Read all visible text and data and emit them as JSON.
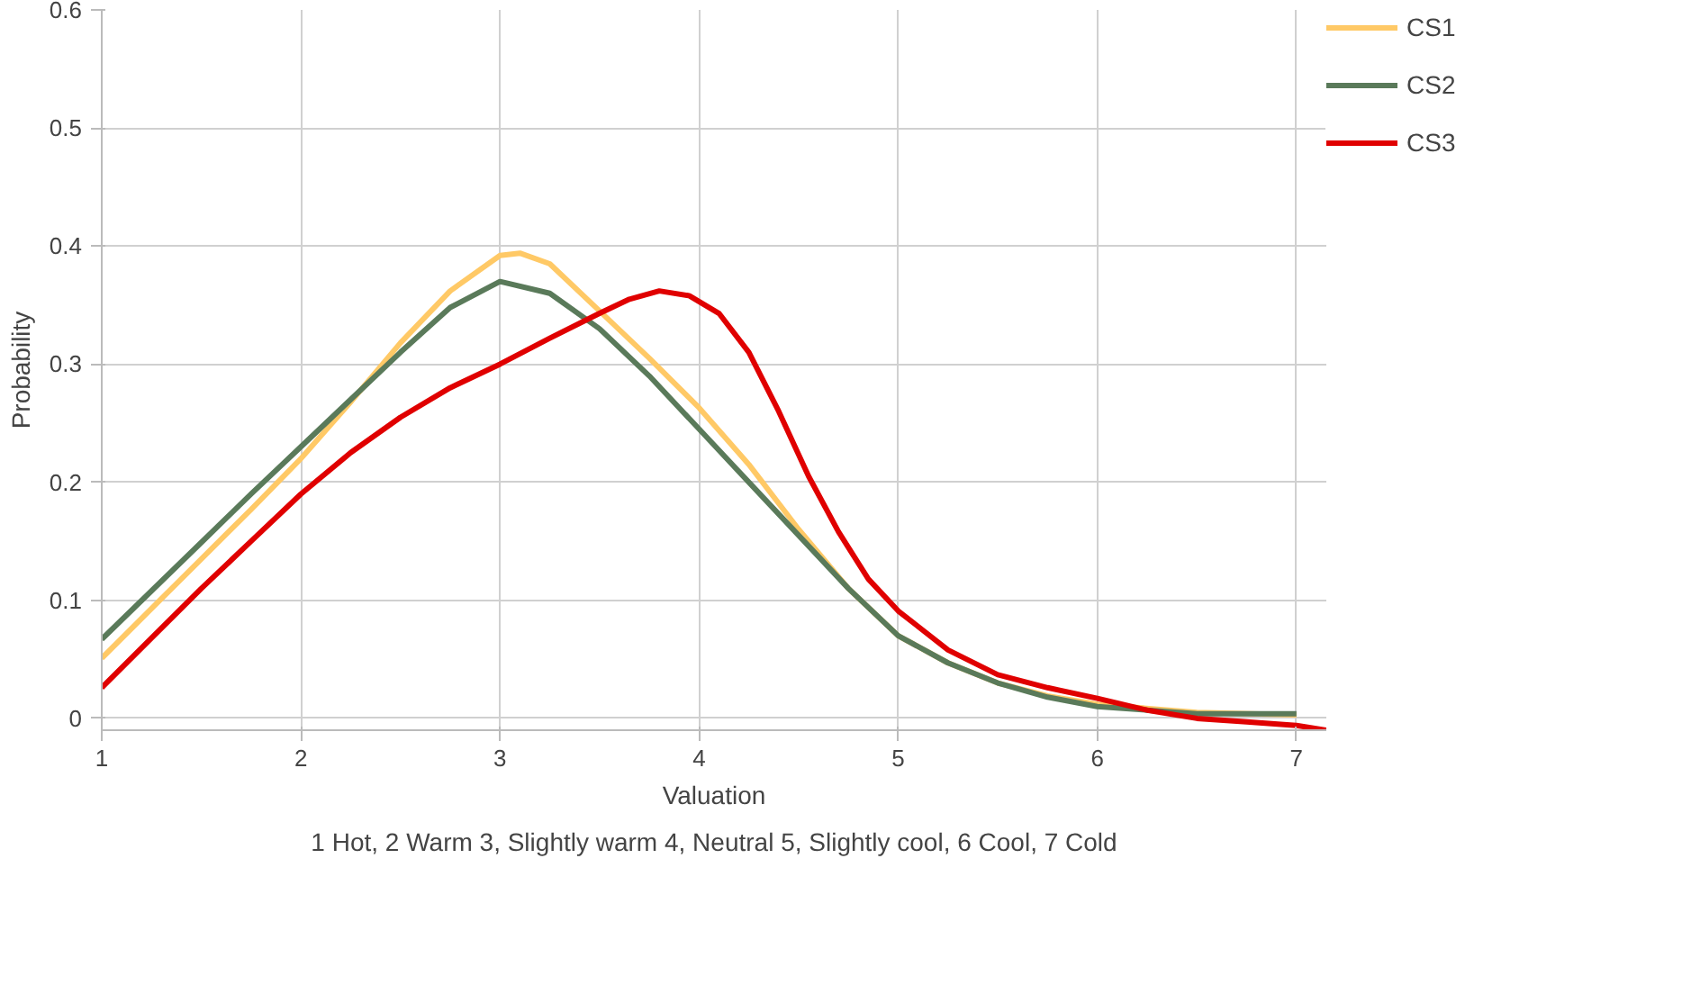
{
  "chart_data": {
    "type": "line",
    "xlabel": "Valuation",
    "ylabel": "Probability",
    "annotations": [
      "1 Hot, 2 Warm 3, Slightly warm 4, Neutral 5, Slightly cool, 6 Cool, 7 Cold"
    ],
    "xlim": [
      1,
      7.15
    ],
    "ylim": [
      -0.01,
      0.6
    ],
    "xticks": [
      1,
      2,
      3,
      4,
      5,
      6,
      7
    ],
    "yticks": [
      0,
      0.1,
      0.2,
      0.3,
      0.4,
      0.5,
      0.6
    ],
    "grid": true,
    "legend": "right",
    "marker": "none",
    "line_style": "solid",
    "series": [
      {
        "name": "CS1",
        "color": "#ffc966",
        "x": [
          1,
          1.25,
          1.5,
          1.75,
          2,
          2.25,
          2.5,
          2.75,
          3,
          3.1,
          3.25,
          3.5,
          3.75,
          4,
          4.25,
          4.5,
          4.75,
          5,
          5.25,
          5.5,
          5.75,
          6,
          6.5,
          7
        ],
        "values": [
          0.051,
          0.093,
          0.135,
          0.177,
          0.22,
          0.268,
          0.318,
          0.362,
          0.392,
          0.394,
          0.385,
          0.345,
          0.305,
          0.263,
          0.215,
          0.16,
          0.11,
          0.07,
          0.047,
          0.03,
          0.019,
          0.012,
          0.005,
          0.003
        ]
      },
      {
        "name": "CS2",
        "color": "#5a7a5a",
        "x": [
          1,
          1.25,
          1.5,
          1.75,
          2,
          2.25,
          2.5,
          2.75,
          3,
          3.25,
          3.5,
          3.75,
          4,
          4.25,
          4.5,
          4.75,
          5,
          5.25,
          5.5,
          5.75,
          6,
          6.5,
          7
        ],
        "values": [
          0.067,
          0.108,
          0.149,
          0.19,
          0.23,
          0.27,
          0.31,
          0.348,
          0.37,
          0.36,
          0.33,
          0.29,
          0.245,
          0.2,
          0.155,
          0.11,
          0.07,
          0.047,
          0.03,
          0.018,
          0.01,
          0.004,
          0.004
        ]
      },
      {
        "name": "CS3",
        "color": "#e00000",
        "x": [
          1,
          1.25,
          1.5,
          1.75,
          2,
          2.25,
          2.5,
          2.75,
          3,
          3.25,
          3.5,
          3.65,
          3.8,
          3.95,
          4.1,
          4.25,
          4.4,
          4.55,
          4.7,
          4.85,
          5,
          5.25,
          5.5,
          5.75,
          6,
          6.25,
          6.5,
          6.75,
          7,
          7.15
        ],
        "values": [
          0.026,
          0.068,
          0.11,
          0.15,
          0.19,
          0.225,
          0.255,
          0.28,
          0.3,
          0.322,
          0.343,
          0.355,
          0.362,
          0.358,
          0.343,
          0.31,
          0.26,
          0.205,
          0.158,
          0.118,
          0.091,
          0.058,
          0.037,
          0.026,
          0.017,
          0.007,
          0.0,
          -0.003,
          -0.006,
          -0.01
        ]
      }
    ]
  }
}
